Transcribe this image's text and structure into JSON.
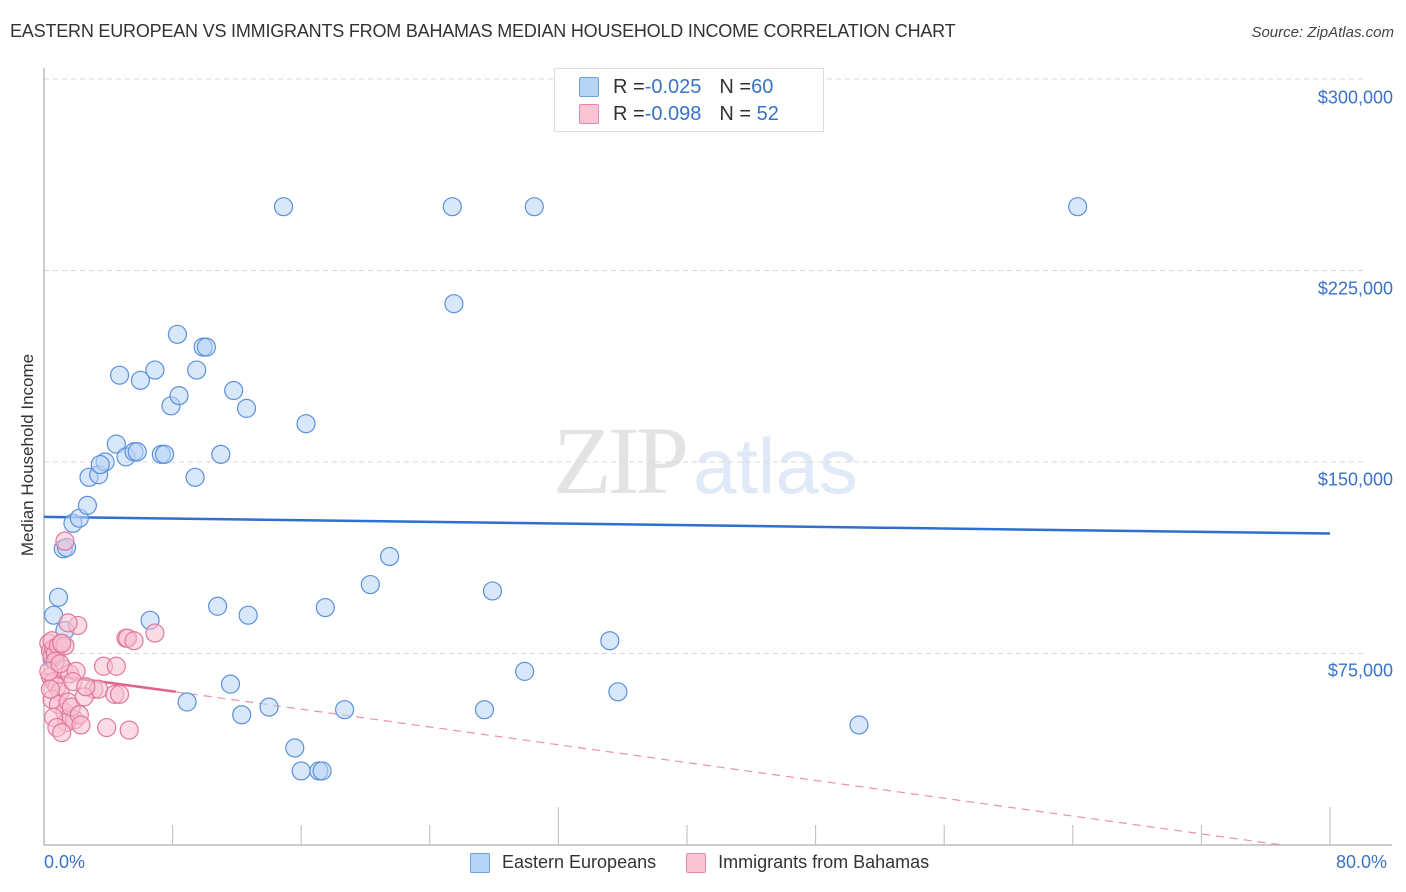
{
  "header": {
    "title": "EASTERN EUROPEAN VS IMMIGRANTS FROM BAHAMAS MEDIAN HOUSEHOLD INCOME CORRELATION CHART",
    "source": "Source: ZipAtlas.com"
  },
  "watermark": {
    "zip": "ZIP",
    "atlas": "atlas"
  },
  "legend_top": {
    "rows": [
      {
        "r_label": "R = ",
        "r_value": "-0.025",
        "n_label": "N = ",
        "n_value": "60",
        "color": "#b8d4f5",
        "border": "#6a9fe0"
      },
      {
        "r_label": "R = ",
        "r_value": "-0.098",
        "n_label": "N = ",
        "n_value": " 52",
        "color": "#f9c5d5",
        "border": "#e889a8"
      }
    ]
  },
  "legend_bottom": {
    "items": [
      {
        "label": "Eastern Europeans",
        "color": "#b8d4f5",
        "border": "#6a9fe0"
      },
      {
        "label": "Immigrants from Bahamas",
        "color": "#f9c5d5",
        "border": "#e889a8"
      }
    ]
  },
  "axes": {
    "ylabel": "Median Household Income",
    "yticks": [
      "$300,000",
      "$225,000",
      "$150,000",
      "$75,000"
    ],
    "xticks": [
      "0.0%",
      "80.0%"
    ]
  },
  "colors": {
    "blue_fill": "#b8d4f5",
    "blue_stroke": "#5b91da",
    "blue_line": "#2f6fcf",
    "pink_fill": "#f7bfd0",
    "pink_stroke": "#e07a9c",
    "pink_line": "#e0638c",
    "grid": "#d9d9d9",
    "tick_text": "#3a72c8"
  },
  "chart_data": {
    "type": "scatter",
    "title": "EASTERN EUROPEAN VS IMMIGRANTS FROM BAHAMAS MEDIAN HOUSEHOLD INCOME CORRELATION CHART",
    "xlabel": "",
    "ylabel": "Median Household Income",
    "xlim": [
      0,
      80
    ],
    "ylim": [
      0,
      310000
    ],
    "x_unit": "%",
    "grid": true,
    "legend_position": "top-center and bottom",
    "yticks": [
      75000,
      150000,
      225000,
      300000
    ],
    "xtick_labels": [
      "0.0%",
      "80.0%"
    ],
    "series": [
      {
        "name": "Eastern Europeans",
        "r": -0.025,
        "n": 60,
        "trend": {
          "x": [
            0,
            80
          ],
          "y": [
            128500,
            122000
          ]
        },
        "points": [
          [
            0.6,
            90000
          ],
          [
            0.9,
            97000
          ],
          [
            1.2,
            116000
          ],
          [
            1.4,
            116500
          ],
          [
            1.8,
            126000
          ],
          [
            2.2,
            128000
          ],
          [
            2.7,
            133000
          ],
          [
            2.8,
            144000
          ],
          [
            3.4,
            145000
          ],
          [
            3.8,
            150000
          ],
          [
            3.5,
            149000
          ],
          [
            4.5,
            157000
          ],
          [
            5.1,
            152000
          ],
          [
            5.6,
            154000
          ],
          [
            4.7,
            184000
          ],
          [
            6.0,
            182000
          ],
          [
            6.9,
            186000
          ],
          [
            5.8,
            154000
          ],
          [
            7.3,
            153000
          ],
          [
            7.5,
            153000
          ],
          [
            7.9,
            172000
          ],
          [
            8.3,
            200000
          ],
          [
            8.4,
            176000
          ],
          [
            9.5,
            186000
          ],
          [
            9.9,
            195000
          ],
          [
            10.1,
            195000
          ],
          [
            9.4,
            144000
          ],
          [
            11.0,
            153000
          ],
          [
            11.8,
            178000
          ],
          [
            12.6,
            171000
          ],
          [
            16.3,
            165000
          ],
          [
            14.9,
            250000
          ],
          [
            25.4,
            250000
          ],
          [
            30.5,
            250000
          ],
          [
            64.3,
            250000
          ],
          [
            25.5,
            212000
          ],
          [
            21.5,
            113000
          ],
          [
            20.3,
            102000
          ],
          [
            27.9,
            99500
          ],
          [
            17.5,
            93000
          ],
          [
            12.7,
            90000
          ],
          [
            10.8,
            93500
          ],
          [
            6.6,
            88000
          ],
          [
            35.2,
            80000
          ],
          [
            29.9,
            68000
          ],
          [
            35.7,
            60000
          ],
          [
            11.6,
            63000
          ],
          [
            8.9,
            56000
          ],
          [
            12.3,
            51000
          ],
          [
            14.0,
            54000
          ],
          [
            18.7,
            53000
          ],
          [
            27.4,
            53000
          ],
          [
            50.7,
            47000
          ],
          [
            15.6,
            38000
          ],
          [
            16.0,
            29000
          ],
          [
            17.1,
            29000
          ],
          [
            17.3,
            29000
          ],
          [
            0.5,
            73000
          ],
          [
            1.3,
            84000
          ],
          [
            0.7,
            74000
          ]
        ]
      },
      {
        "name": "Immigrants from Bahamas",
        "r": -0.098,
        "n": 52,
        "trend": {
          "x": [
            0,
            8.2
          ],
          "y": [
            67000,
            60000
          ],
          "dashed_extension_to": [
            77,
            0
          ]
        },
        "points": [
          [
            0.3,
            79000
          ],
          [
            0.4,
            76000
          ],
          [
            0.5,
            74000
          ],
          [
            0.6,
            77000
          ],
          [
            0.7,
            75000
          ],
          [
            0.5,
            80000
          ],
          [
            0.9,
            78000
          ],
          [
            1.1,
            79000
          ],
          [
            1.3,
            78000
          ],
          [
            0.4,
            66000
          ],
          [
            0.6,
            64000
          ],
          [
            0.8,
            62000
          ],
          [
            1.0,
            60000
          ],
          [
            0.5,
            57000
          ],
          [
            0.9,
            55000
          ],
          [
            1.3,
            52000
          ],
          [
            1.6,
            50000
          ],
          [
            1.9,
            49000
          ],
          [
            1.4,
            48000
          ],
          [
            0.6,
            50000
          ],
          [
            0.8,
            46000
          ],
          [
            1.1,
            44000
          ],
          [
            1.5,
            56000
          ],
          [
            1.7,
            54000
          ],
          [
            2.2,
            51000
          ],
          [
            1.2,
            69000
          ],
          [
            1.6,
            67000
          ],
          [
            2.0,
            68000
          ],
          [
            1.3,
            119000
          ],
          [
            2.1,
            86000
          ],
          [
            1.5,
            87000
          ],
          [
            1.1,
            79000
          ],
          [
            3.7,
            70000
          ],
          [
            4.5,
            70000
          ],
          [
            3.1,
            61000
          ],
          [
            3.4,
            61000
          ],
          [
            4.4,
            59000
          ],
          [
            4.7,
            59000
          ],
          [
            5.1,
            81000
          ],
          [
            5.2,
            81000
          ],
          [
            6.9,
            83000
          ],
          [
            5.6,
            80000
          ],
          [
            3.9,
            46000
          ],
          [
            5.3,
            45000
          ],
          [
            2.3,
            47000
          ],
          [
            0.7,
            72000
          ],
          [
            1.8,
            64000
          ],
          [
            2.5,
            58000
          ],
          [
            0.3,
            68000
          ],
          [
            1.0,
            71000
          ],
          [
            2.6,
            62000
          ],
          [
            0.4,
            61000
          ]
        ]
      }
    ]
  }
}
